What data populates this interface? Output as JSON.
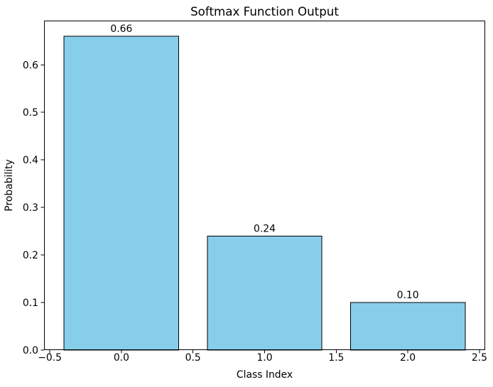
{
  "chart_data": {
    "type": "bar",
    "title": "Softmax Function Output",
    "xlabel": "Class Index",
    "ylabel": "Probability",
    "categories": [
      0,
      1,
      2
    ],
    "values": [
      0.66,
      0.24,
      0.1
    ],
    "bar_labels": [
      "0.66",
      "0.24",
      "0.10"
    ],
    "bar_width": 0.8,
    "xlim": [
      -0.54,
      2.54
    ],
    "ylim": [
      0,
      0.693
    ],
    "xticks": [
      -0.5,
      0,
      0.5,
      1,
      1.5,
      2,
      2.5
    ],
    "xtick_labels": [
      "−0.5",
      "0.0",
      "0.5",
      "1.0",
      "1.5",
      "2.0",
      "2.5"
    ],
    "yticks": [
      0,
      0.1,
      0.2,
      0.3,
      0.4,
      0.5,
      0.6
    ],
    "ytick_labels": [
      "0.0",
      "0.1",
      "0.2",
      "0.3",
      "0.4",
      "0.5",
      "0.6"
    ],
    "bar_color": "#87CEEB",
    "bar_edge_color": "#000000",
    "axis_color": "#000000",
    "text_color": "#000000",
    "background_color": "#FFFFFF",
    "grid": false,
    "legend": null
  }
}
